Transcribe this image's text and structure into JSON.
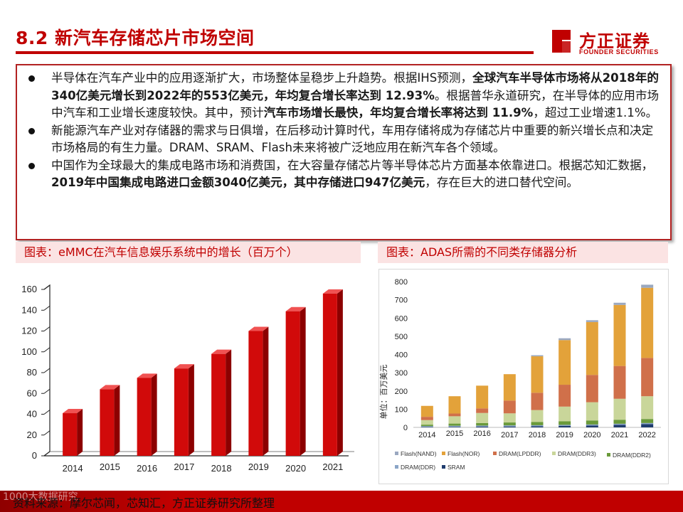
{
  "header": {
    "title": "8.2 新汽车存储芯片市场空间",
    "logo_cn": "方正证券",
    "logo_en": "FOUNDER SECURITIES"
  },
  "summary": {
    "bullets": [
      [
        {
          "t": "半导体在汽车产业中的应用逐渐扩大，市场整体呈稳步上升趋势。根据IHS预测，",
          "b": false
        },
        {
          "t": "全球汽车半导体市场将从2018年的340亿美元增长到2022年的553亿美元，年均复合增长率达到 12.93%",
          "b": true
        },
        {
          "t": "。根据普华永道研究，在半导体的应用市场中汽车和工业增长速度较快。其中，预计",
          "b": false
        },
        {
          "t": "汽车市场增长最快，年均复合增长率将达到 11.9%",
          "b": true
        },
        {
          "t": "，超过工业增速1.1%。",
          "b": false
        }
      ],
      [
        {
          "t": "新能源汽车产业对存储器的需求与日俱增，在后移动计算时代，车用存储将成为存储芯片中重要的新兴增长点和决定市场格局的有生力量。DRAM、SRAM、Flash未来将被广泛地应用在新汽车各个领域。",
          "b": false
        }
      ],
      [
        {
          "t": "中国作为全球最大的集成电路市场和消费国，在大容量存储芯片等半导体芯片方面基本依靠进口。根据芯知汇数据，",
          "b": false
        },
        {
          "t": "2019年中国集成电路进口金额3040亿美元，其中存储进口947亿美元",
          "b": true
        },
        {
          "t": "，存在巨大的进口替代空间。",
          "b": false
        }
      ]
    ]
  },
  "captions": {
    "left": "图表：eMMC在汽车信息娱乐系统中的增长（百万个）",
    "right": "图表：ADAS所需的不同类存储器分析"
  },
  "chart_data": [
    {
      "type": "bar",
      "title": "eMMC在汽车信息娱乐系统中的增长（百万个）",
      "categories": [
        "2014",
        "2015",
        "2016",
        "2017",
        "2018",
        "2019",
        "2020",
        "2021"
      ],
      "values": [
        41,
        64,
        75,
        84,
        98,
        120,
        139,
        156
      ],
      "ylim": [
        0,
        160
      ],
      "yticks": [
        0,
        20,
        40,
        60,
        80,
        100,
        120,
        140,
        160
      ],
      "color": "#d10a0a",
      "xlabel": "",
      "ylabel": ""
    },
    {
      "type": "bar",
      "stacked": true,
      "title": "ADAS所需的不同类存储器分析",
      "ylabel": "单位：百万美元",
      "categories": [
        "2014",
        "2015",
        "2016",
        "2017",
        "2018",
        "2019",
        "2020",
        "2021",
        "2022"
      ],
      "ylim": [
        0,
        800
      ],
      "yticks": [
        0,
        100,
        200,
        300,
        400,
        500,
        600,
        700,
        800
      ],
      "series": [
        {
          "name": "SRAM",
          "color": "#1f3c6e",
          "values": [
            2,
            3,
            4,
            5,
            6,
            8,
            10,
            14,
            18
          ]
        },
        {
          "name": "DRAM(DDR)",
          "color": "#8aa5c7",
          "values": [
            5,
            6,
            6,
            6,
            6,
            6,
            6,
            6,
            6
          ]
        },
        {
          "name": "DRAM(DDR2)",
          "color": "#6a9a3a",
          "values": [
            8,
            12,
            14,
            16,
            18,
            20,
            22,
            22,
            22
          ]
        },
        {
          "name": "DRAM(DDR3)",
          "color": "#c9d69a",
          "values": [
            25,
            40,
            55,
            50,
            65,
            80,
            100,
            115,
            125
          ]
        },
        {
          "name": "DRAM(LPDDR)",
          "color": "#d0704a",
          "values": [
            18,
            15,
            25,
            70,
            95,
            120,
            150,
            180,
            210
          ]
        },
        {
          "name": "Flash(NOR)",
          "color": "#e3a23a",
          "values": [
            60,
            95,
            125,
            145,
            200,
            245,
            290,
            335,
            385
          ]
        },
        {
          "name": "Flash(NAND)",
          "color": "#9aa8c0",
          "values": [
            0,
            0,
            0,
            0,
            6,
            10,
            10,
            12,
            17
          ]
        }
      ],
      "legend_order": [
        "Flash(NAND)",
        "Flash(NOR)",
        "DRAM(LPDDR)",
        "DRAM(DDR3)",
        "DRAM(DDR2)",
        "DRAM(DDR)",
        "SRAM"
      ],
      "legend": "bottom"
    }
  ],
  "footer": {
    "source": "资料来源：摩尔芯闻，芯知汇，方正证券研究所整理",
    "watermark": "1000大数据研究"
  }
}
